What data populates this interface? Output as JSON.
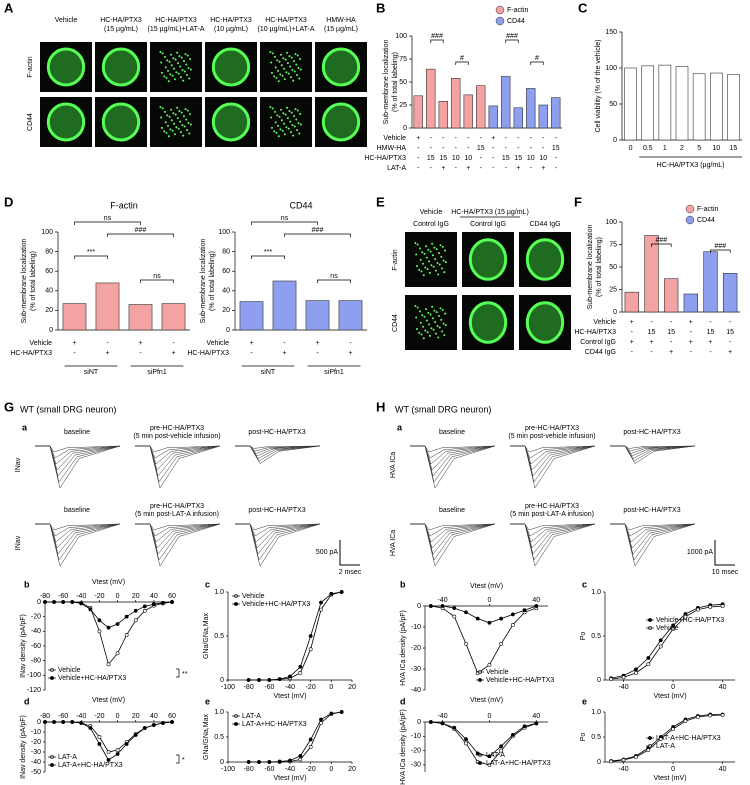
{
  "figure": {
    "panel_letters": [
      "A",
      "B",
      "C",
      "D",
      "E",
      "F",
      "G",
      "H"
    ],
    "A": {
      "columns": [
        [
          "Vehicle"
        ],
        [
          "HC-HA/PTX3",
          "(15 µg/mL)"
        ],
        [
          "HC-HA/PTX3",
          "(15 µg/mL)+LAT-A"
        ],
        [
          "HC-HA/PTX3",
          "(10 µg/mL)"
        ],
        [
          "HC-HA/PTX3",
          "(10 µg/mL)+LAT-A"
        ],
        [
          "HMW-HA",
          "(15 µg/mL)"
        ]
      ],
      "rows": [
        "F-actin",
        "CD44"
      ]
    },
    "E": {
      "header": "HC-HA/PTX3 (15 µg/mL)",
      "columns": [
        [
          "Vehicle",
          "Control IgG"
        ],
        [
          "Control IgG"
        ],
        [
          "CD44 IgG"
        ]
      ],
      "rows": [
        "F-actin",
        "CD44"
      ]
    },
    "G": {
      "title": "WT (small DRG neuron)",
      "sub": "a",
      "rows": [
        {
          "ylabel": "INav",
          "traces": [
            [
              "baseline"
            ],
            [
              "pre-HC-HA/PTX3",
              "(5 min post-vehicle infusion)"
            ],
            [
              "post-HC-HA/PTX3"
            ]
          ]
        },
        {
          "ylabel": "INav",
          "traces": [
            [
              "baseline"
            ],
            [
              "pre-HC-HA/PTX3",
              "(5 min post-LAT-A infusion)"
            ],
            [
              "post-HC-HA/PTX3"
            ]
          ]
        }
      ],
      "scale": [
        "500 pA",
        "2 msec"
      ]
    },
    "H": {
      "title": "WT (small DRG neuron)",
      "sub": "a",
      "rows": [
        {
          "ylabel": "HVA ICa",
          "traces": [
            [
              "baseline"
            ],
            [
              "pre-HC-HA/PTX3",
              "(5 min post-vehicle infusion)"
            ],
            [
              "post-HC-HA/PTX3"
            ]
          ]
        },
        {
          "ylabel": "HVA ICa",
          "traces": [
            [
              "baseline"
            ],
            [
              "pre-HC-HA/PTX3",
              "(5 min post-LAT-A infusion)"
            ],
            [
              "post-HC-HA/PTX3"
            ]
          ]
        }
      ],
      "scale": [
        "1000 pA",
        "10 msec"
      ]
    }
  },
  "chart_data": [
    {
      "type": "bar",
      "ylabel": [
        "Sub-membrane localization",
        "(% of total labeling)"
      ],
      "categories": [
        null,
        null,
        null,
        null,
        null,
        null,
        null,
        null,
        null,
        null,
        null,
        null
      ],
      "series": [
        {
          "name": "F-actin",
          "color": "#f4a3a3",
          "values": [
            35,
            64,
            29,
            54,
            36,
            46,
            null,
            null,
            null,
            null,
            null,
            null
          ]
        },
        {
          "name": "CD44",
          "color": "#8f9ff0",
          "values": [
            null,
            null,
            null,
            null,
            null,
            null,
            24,
            56,
            22,
            43,
            25,
            33
          ]
        }
      ],
      "ylim": [
        0,
        100
      ],
      "yticks": [
        0,
        25,
        50,
        75,
        100
      ],
      "legend": "top-right",
      "table": [
        {
          "label": "Vehicle",
          "cells": [
            "+",
            "-",
            "-",
            "-",
            "-",
            "-",
            "+",
            "-",
            "-",
            "-",
            "-",
            "-"
          ]
        },
        {
          "label": "HMW-HA",
          "cells": [
            "-",
            "-",
            "-",
            "-",
            "-",
            "15",
            "-",
            "-",
            "-",
            "-",
            "-",
            "15"
          ]
        },
        {
          "label": "HC-HA/PTX3",
          "cells": [
            "-",
            "15",
            "15",
            "10",
            "10",
            "-",
            "-",
            "15",
            "15",
            "10",
            "10",
            "-"
          ]
        },
        {
          "label": "LAT-A",
          "cells": [
            "-",
            "-",
            "+",
            "-",
            "+",
            "-",
            "-",
            "-",
            "+",
            "-",
            "+",
            "-"
          ]
        }
      ],
      "annotations": [
        "###",
        "#",
        "###",
        "#"
      ]
    },
    {
      "type": "bar",
      "ylabel": [
        "Cell viability (% of the vehicle)"
      ],
      "categories": [
        "0",
        "0.5",
        "1",
        "2",
        "5",
        "10",
        "15"
      ],
      "values": [
        100,
        103,
        104,
        102,
        92,
        93,
        91
      ],
      "color": "#ffffff",
      "ylim": [
        0,
        150
      ],
      "yticks": [
        0,
        50,
        100,
        150
      ],
      "xlabel": "HC-HA/PTX3 (µg/mL)"
    },
    {
      "type": "bar",
      "title": "F-actin",
      "ylabel": [
        "Sub-membrane localization",
        "(% of total labeling)"
      ],
      "categories": [
        null,
        null,
        null,
        null
      ],
      "values": [
        27,
        48,
        26,
        27
      ],
      "color": "#f4a3a3",
      "ylim": [
        0,
        100
      ],
      "yticks": [
        0,
        20,
        40,
        60,
        80,
        100
      ],
      "table": [
        {
          "label": "Vehicle",
          "cells": [
            "+",
            "-",
            "+",
            "-"
          ]
        },
        {
          "label": "HC-HA/PTX3",
          "cells": [
            "-",
            "+",
            "-",
            "+"
          ]
        }
      ],
      "groups": [
        "siNT",
        "siPfn1"
      ],
      "annotations": [
        "ns",
        "###",
        "***",
        "ns"
      ]
    },
    {
      "type": "bar",
      "title": "CD44",
      "ylabel": [
        "Sub-membrane localization",
        "(% of total labeling)"
      ],
      "categories": [
        null,
        null,
        null,
        null
      ],
      "values": [
        29,
        50,
        30,
        30
      ],
      "color": "#8f9ff0",
      "ylim": [
        0,
        100
      ],
      "yticks": [
        0,
        20,
        40,
        60,
        80,
        100
      ],
      "table": [
        {
          "label": "Vehicle",
          "cells": [
            "+",
            "-",
            "+",
            "-"
          ]
        },
        {
          "label": "HC-HA/PTX3",
          "cells": [
            "-",
            "+",
            "-",
            "+"
          ]
        }
      ],
      "groups": [
        "siNT",
        "siPfn1"
      ],
      "annotations": [
        "ns",
        "###",
        "***",
        "ns"
      ]
    },
    {
      "type": "bar",
      "ylabel": [
        "Sub-membrane localization",
        "(% of total labeling)"
      ],
      "categories": [
        null,
        null,
        null,
        null,
        null,
        null
      ],
      "series": [
        {
          "name": "F-actin",
          "color": "#f4a3a3",
          "values": [
            22,
            85,
            37,
            null,
            null,
            null
          ]
        },
        {
          "name": "CD44",
          "color": "#8f9ff0",
          "values": [
            null,
            null,
            null,
            20,
            67,
            43
          ]
        }
      ],
      "ylim": [
        0,
        100
      ],
      "yticks": [
        0,
        25,
        50,
        75,
        100
      ],
      "legend": "top-right",
      "table": [
        {
          "label": "Vehicle",
          "cells": [
            "+",
            "-",
            "-",
            "+",
            "-",
            "-"
          ]
        },
        {
          "label": "HC-HA/PTX3",
          "cells": [
            "-",
            "15",
            "15",
            "-",
            "15",
            "15"
          ]
        },
        {
          "label": "Control IgG",
          "cells": [
            "+",
            "+",
            "-",
            "+",
            "+",
            "-"
          ]
        },
        {
          "label": "CD44 IgG",
          "cells": [
            "-",
            "-",
            "+",
            "-",
            "-",
            "+"
          ]
        }
      ],
      "annotations": [
        "###",
        "###"
      ]
    },
    {
      "type": "line",
      "label": "b",
      "xlabel": "Vtest (mV)",
      "ylabel": "INav density (pA/pF)",
      "xaxis": "top",
      "x": [
        -80,
        -70,
        -60,
        -50,
        -40,
        -30,
        -20,
        -10,
        0,
        10,
        20,
        30,
        40,
        50,
        60
      ],
      "xlim": [
        -80,
        60
      ],
      "xticks": [
        -80,
        -60,
        -40,
        -20,
        0,
        20,
        40,
        60
      ],
      "ylim": [
        -120,
        0
      ],
      "yticks": [
        -120,
        -100,
        -80,
        -60,
        -40,
        -20,
        0
      ],
      "series": [
        {
          "name": "Vehicle",
          "marker": "open",
          "color": "#000000",
          "values": [
            0,
            0,
            0,
            0,
            -1,
            -8,
            -40,
            -85,
            -70,
            -45,
            -25,
            -12,
            -5,
            -2,
            0
          ]
        },
        {
          "name": "Vehicle+HC-HA/PTX3",
          "marker": "filled",
          "color": "#000000",
          "values": [
            0,
            0,
            0,
            0,
            -2,
            -10,
            -25,
            -35,
            -30,
            -20,
            -12,
            -6,
            -3,
            -1,
            0
          ]
        }
      ],
      "annotation": "**"
    },
    {
      "type": "line",
      "label": "c",
      "xlabel": "Vtest (mV)",
      "ylabel": "GNa/GNa,Max",
      "xaxis": "bottom",
      "x": [
        -80,
        -70,
        -60,
        -50,
        -40,
        -30,
        -20,
        -10,
        0,
        10
      ],
      "xlim": [
        -100,
        20
      ],
      "xticks": [
        -100,
        -80,
        -60,
        -40,
        -20,
        0,
        20
      ],
      "ylim": [
        0,
        1
      ],
      "yticks": [
        0,
        0.5,
        {
          "value": 1,
          "label": "1.0"
        }
      ],
      "series": [
        {
          "name": "Vehicle",
          "marker": "open",
          "color": "#000000",
          "values": [
            0,
            0,
            0,
            0.01,
            0.02,
            0.08,
            0.35,
            0.8,
            0.97,
            1
          ]
        },
        {
          "name": "Vehicle+HC-HA/PTX3",
          "marker": "filled",
          "color": "#000000",
          "values": [
            0,
            0,
            0,
            0.01,
            0.04,
            0.15,
            0.5,
            0.88,
            0.98,
            1
          ]
        }
      ]
    },
    {
      "type": "line",
      "label": "d",
      "xlabel": "Vtest (mV)",
      "ylabel": "INav density (pA/pF)",
      "xaxis": "top",
      "x": [
        -80,
        -70,
        -60,
        -50,
        -40,
        -30,
        -20,
        -10,
        0,
        10,
        20,
        30,
        40,
        50,
        60
      ],
      "xlim": [
        -80,
        60
      ],
      "xticks": [
        -80,
        -60,
        -40,
        -20,
        0,
        20,
        40,
        60
      ],
      "ylim": [
        -50,
        0
      ],
      "yticks": [
        -50,
        -40,
        -30,
        -20,
        -10,
        0
      ],
      "series": [
        {
          "name": "LAT-A",
          "marker": "open",
          "color": "#000000",
          "values": [
            0,
            0,
            0,
            0,
            -1,
            -4,
            -15,
            -30,
            -28,
            -20,
            -12,
            -6,
            -3,
            -1,
            0
          ]
        },
        {
          "name": "LAT-A+HC-HA/PTX3",
          "marker": "filled",
          "color": "#000000",
          "values": [
            0,
            0,
            0,
            0,
            -1,
            -6,
            -22,
            -38,
            -32,
            -22,
            -13,
            -6,
            -3,
            -1,
            0
          ]
        }
      ],
      "annotation": "*"
    },
    {
      "type": "line",
      "label": "e",
      "xlabel": "Vtest (mV)",
      "ylabel": "GNa/GNa,Max",
      "xaxis": "bottom",
      "x": [
        -80,
        -70,
        -60,
        -50,
        -40,
        -30,
        -20,
        -10,
        0,
        10
      ],
      "xlim": [
        -100,
        20
      ],
      "xticks": [
        -100,
        -80,
        -60,
        -40,
        -20,
        0,
        20
      ],
      "ylim": [
        0,
        1
      ],
      "yticks": [
        0,
        0.5,
        {
          "value": 1,
          "label": "1.0"
        }
      ],
      "series": [
        {
          "name": "LAT-A",
          "marker": "open",
          "color": "#000000",
          "values": [
            0,
            0,
            0,
            0,
            0.01,
            0.05,
            0.3,
            0.78,
            0.96,
            1
          ]
        },
        {
          "name": "LAT-A+HC-HA/PTX3",
          "marker": "filled",
          "color": "#000000",
          "values": [
            0,
            0,
            0,
            0.01,
            0.03,
            0.12,
            0.45,
            0.85,
            0.97,
            1
          ]
        }
      ]
    },
    {
      "type": "line",
      "label": "b",
      "xlabel": "Vtest (mV)",
      "ylabel": "HVA ICa density (pA/pF)",
      "xaxis": "top",
      "x": [
        -50,
        -40,
        -30,
        -20,
        -10,
        0,
        10,
        20,
        30,
        40
      ],
      "xlim": [
        -55,
        50
      ],
      "xticks": [
        -40,
        0,
        40
      ],
      "ylim": [
        -40,
        0
      ],
      "yticks": [
        -40,
        -30,
        -20,
        -10,
        0
      ],
      "series": [
        {
          "name": "Vehicle",
          "marker": "open",
          "color": "#000000",
          "values": [
            0,
            -1,
            -5,
            -18,
            -32,
            -28,
            -18,
            -9,
            -3,
            -1
          ]
        },
        {
          "name": "Vehicle+HC-HA/PTX3",
          "marker": "filled",
          "color": "#000000",
          "values": [
            0,
            0,
            -1,
            -3,
            -6,
            -8,
            -6,
            -4,
            -2,
            0
          ]
        }
      ]
    },
    {
      "type": "line",
      "label": "c",
      "xlabel": "Vtest (mV)",
      "ylabel": "Po",
      "xaxis": "bottom",
      "x": [
        -50,
        -40,
        -30,
        -20,
        -10,
        0,
        10,
        20,
        30,
        40
      ],
      "xlim": [
        -55,
        50
      ],
      "xticks": [
        -40,
        0,
        40
      ],
      "ylim": [
        0,
        1
      ],
      "yticks": [
        0,
        0.5,
        {
          "value": 1,
          "label": "1.0"
        }
      ],
      "series": [
        {
          "name": "Vehicle+HC-HA/PTX3",
          "marker": "filled",
          "color": "#000000",
          "values": [
            0.02,
            0.05,
            0.12,
            0.25,
            0.45,
            0.62,
            0.75,
            0.82,
            0.85,
            0.86
          ]
        },
        {
          "name": "Vehicle",
          "marker": "open",
          "color": "#000000",
          "values": [
            0.01,
            0.03,
            0.08,
            0.18,
            0.38,
            0.58,
            0.72,
            0.8,
            0.83,
            0.84
          ]
        }
      ]
    },
    {
      "type": "line",
      "label": "d",
      "xlabel": "Vtest (mV)",
      "ylabel": "HVA ICa density (pA/pF)",
      "xaxis": "top",
      "x": [
        -50,
        -40,
        -30,
        -20,
        -10,
        0,
        10,
        20,
        30,
        40
      ],
      "xlim": [
        -55,
        50
      ],
      "xticks": [
        -40,
        0,
        40
      ],
      "ylim": [
        -35,
        0
      ],
      "yticks": [
        -30,
        -20,
        -10,
        0
      ],
      "series": [
        {
          "name": "LAT-A",
          "marker": "open",
          "color": "#000000",
          "values": [
            0,
            -1,
            -5,
            -15,
            -28,
            -30,
            -20,
            -10,
            -4,
            -1
          ]
        },
        {
          "name": "LAT-A+HC-HA/PTX3",
          "marker": "filled",
          "color": "#000000",
          "values": [
            0,
            -1,
            -4,
            -12,
            -22,
            -24,
            -17,
            -9,
            -3,
            -1
          ]
        }
      ]
    },
    {
      "type": "line",
      "label": "e",
      "xlabel": "Vtest (mV)",
      "ylabel": "Po",
      "xaxis": "bottom",
      "x": [
        -50,
        -40,
        -30,
        -20,
        -10,
        0,
        10,
        20,
        30,
        40
      ],
      "xlim": [
        -55,
        50
      ],
      "xticks": [
        -40,
        0,
        40
      ],
      "ylim": [
        0,
        1
      ],
      "yticks": [
        0,
        0.5,
        {
          "value": 1,
          "label": "1.0"
        }
      ],
      "series": [
        {
          "name": "LAT-A+HC-HA/PTX3",
          "marker": "filled",
          "color": "#000000",
          "values": [
            0.02,
            0.05,
            0.12,
            0.28,
            0.5,
            0.7,
            0.85,
            0.92,
            0.95,
            0.95
          ]
        },
        {
          "name": "LAT-A",
          "marker": "open",
          "color": "#000000",
          "values": [
            0.01,
            0.04,
            0.1,
            0.24,
            0.46,
            0.66,
            0.82,
            0.9,
            0.93,
            0.94
          ]
        }
      ]
    }
  ]
}
